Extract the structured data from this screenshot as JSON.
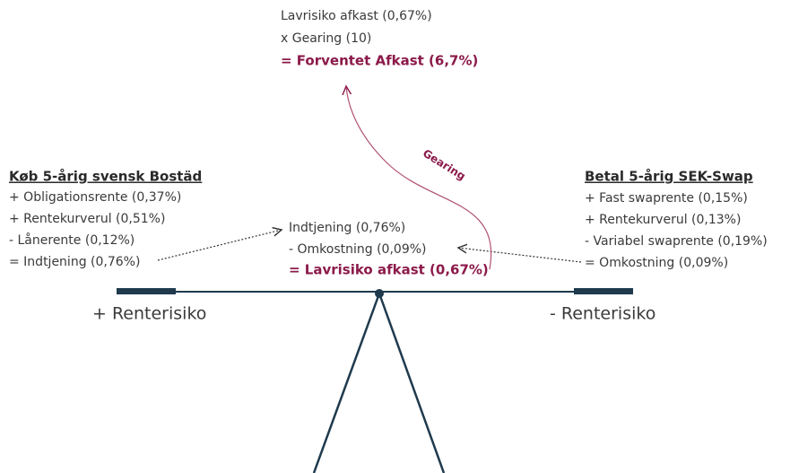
{
  "top": {
    "lines": [
      "Lavrisiko afkast (0,67%)",
      "x Gearing (10)"
    ],
    "result": "= Forventet Afkast (6,7%)"
  },
  "left": {
    "title": "Køb 5-årig svensk Bostäd",
    "lines": [
      "+ Obligationsrente (0,37%)",
      "+ Rentekurverul (0,51%)",
      "- Lånerente (0,12%)",
      "= Indtjening (0,76%)"
    ]
  },
  "right": {
    "title": "Betal 5-årig SEK-Swap",
    "lines": [
      "+ Fast swaprente (0,15%)",
      "+ Rentekurverul (0,13%)",
      "- Variabel swaprente (0,19%)",
      "= Omkostning (0,09%)"
    ]
  },
  "center": {
    "lines": [
      "Indtjening (0,76%)",
      "- Omkostning (0,09%)"
    ],
    "result": "= Lavrisiko afkast (0,67%)"
  },
  "gearing_label": "Gearing",
  "scale": {
    "left_label": "+ Renterisiko",
    "right_label": "- Renterisiko"
  }
}
